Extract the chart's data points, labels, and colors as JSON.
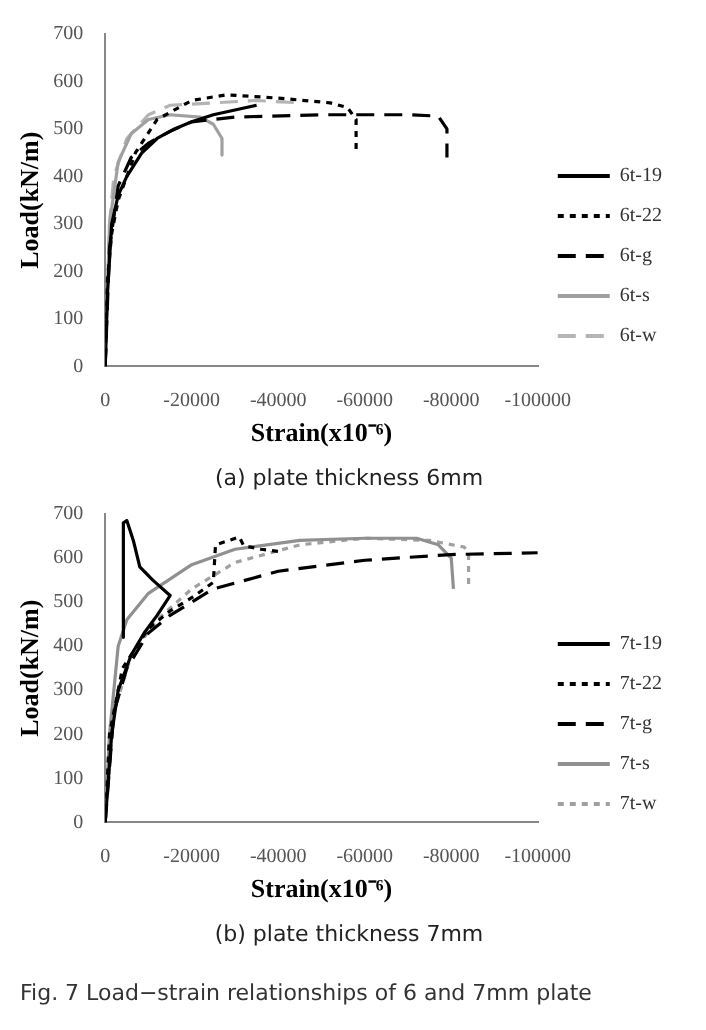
{
  "chart_data": [
    {
      "type": "line",
      "title": "(a) plate thickness 6mm",
      "xlabel": "Strain(x10⁻⁶)",
      "ylabel": "Load(kN/m)",
      "xlim": [
        0,
        -100000
      ],
      "xticks": [
        0,
        -20000,
        -40000,
        -60000,
        -80000,
        -100000
      ],
      "ylim": [
        0,
        700
      ],
      "yticks": [
        0,
        100,
        200,
        300,
        400,
        500,
        600,
        700
      ],
      "grid": false,
      "legend": "right",
      "marker": "none",
      "series": [
        {
          "name": "6t-19",
          "color": "#000000",
          "line_style": "solid",
          "x": [
            0,
            -500,
            -1500,
            -3000,
            -5000,
            -8500,
            -12000,
            -16000,
            -20000,
            -25000,
            -30000,
            -35000
          ],
          "values": [
            0,
            150,
            300,
            360,
            400,
            450,
            480,
            500,
            515,
            530,
            540,
            550
          ]
        },
        {
          "name": "6t-22",
          "color": "#000000",
          "line_style": "dotted",
          "x": [
            0,
            -500,
            -1500,
            -3000,
            -7000,
            -12000,
            -20000,
            -28000,
            -40000,
            -52000,
            -56000,
            -58000,
            -58000
          ],
          "values": [
            0,
            180,
            280,
            350,
            450,
            520,
            560,
            572,
            565,
            555,
            545,
            520,
            450
          ]
        },
        {
          "name": "6t-g",
          "color": "#000000",
          "line_style": "dashed",
          "x": [
            0,
            -1000,
            -3000,
            -6000,
            -10000,
            -15000,
            -20000,
            -30000,
            -50000,
            -70000,
            -77000,
            -79000,
            -79000
          ],
          "values": [
            0,
            250,
            380,
            440,
            470,
            495,
            515,
            525,
            530,
            530,
            527,
            500,
            440
          ]
        },
        {
          "name": "6t-s",
          "color": "#a0a0a0",
          "line_style": "solid",
          "x": [
            0,
            -1000,
            -3000,
            -6000,
            -10000,
            -15000,
            -22000,
            -25000,
            -27000,
            -27000
          ],
          "values": [
            0,
            300,
            430,
            490,
            520,
            530,
            525,
            510,
            480,
            445
          ]
        },
        {
          "name": "6t-w",
          "color": "#b4b4b4",
          "line_style": "dashed",
          "x": [
            0,
            -1000,
            -2000,
            -5000,
            -10000,
            -15000,
            -25000,
            -35000,
            -45000
          ],
          "values": [
            0,
            300,
            400,
            480,
            530,
            550,
            555,
            560,
            555
          ]
        }
      ]
    },
    {
      "type": "line",
      "title": "(b) plate thickness 7mm",
      "xlabel": "Strain(x10⁻⁶)",
      "ylabel": "Load(kN/m)",
      "xlim": [
        0,
        -100000
      ],
      "xticks": [
        0,
        -20000,
        -40000,
        -60000,
        -80000,
        -100000
      ],
      "ylim": [
        0,
        700
      ],
      "yticks": [
        0,
        100,
        200,
        300,
        400,
        500,
        600,
        700
      ],
      "grid": false,
      "legend": "right",
      "marker": "none",
      "annotations": [
        "Fig. 7 Load−strain relationships of 6 and 7mm plate"
      ],
      "series": [
        {
          "name": "7t-19",
          "color": "#000000",
          "line_style": "solid",
          "x": [
            0,
            -1500,
            -3000,
            -6000,
            -9000,
            -12000,
            -15000,
            -11000,
            -8000,
            -6500,
            -5000,
            -4200,
            -4200
          ],
          "values": [
            0,
            200,
            300,
            380,
            430,
            470,
            515,
            550,
            580,
            640,
            685,
            680,
            420
          ]
        },
        {
          "name": "7t-22",
          "color": "#000000",
          "line_style": "dotted",
          "x": [
            0,
            -1000,
            -4000,
            -10000,
            -15000,
            -20000,
            -25000,
            -25500,
            -28000,
            -31000,
            -32000,
            -36000,
            -40000
          ],
          "values": [
            0,
            200,
            350,
            440,
            480,
            510,
            545,
            630,
            638,
            648,
            628,
            620,
            615
          ]
        },
        {
          "name": "7t-g",
          "color": "#000000",
          "line_style": "dashed",
          "x": [
            0,
            -2000,
            -5000,
            -10000,
            -15000,
            -25000,
            -40000,
            -60000,
            -80000,
            -100000
          ],
          "values": [
            0,
            250,
            350,
            430,
            470,
            530,
            570,
            595,
            608,
            612
          ]
        },
        {
          "name": "7t-s",
          "color": "#909090",
          "line_style": "solid",
          "x": [
            0,
            -1000,
            -3000,
            -5000,
            -10000,
            -20000,
            -30000,
            -45000,
            -60000,
            -72000,
            -77000,
            -80000,
            -80500
          ],
          "values": [
            0,
            200,
            400,
            460,
            520,
            585,
            620,
            640,
            645,
            645,
            630,
            600,
            530
          ]
        },
        {
          "name": "7t-w",
          "color": "#a0a0a0",
          "line_style": "dotted",
          "x": [
            0,
            -2000,
            -6000,
            -12000,
            -20000,
            -30000,
            -45000,
            -60000,
            -75000,
            -83000,
            -84000,
            -84000
          ],
          "values": [
            0,
            250,
            380,
            460,
            530,
            590,
            630,
            645,
            640,
            625,
            610,
            535
          ]
        }
      ]
    }
  ]
}
